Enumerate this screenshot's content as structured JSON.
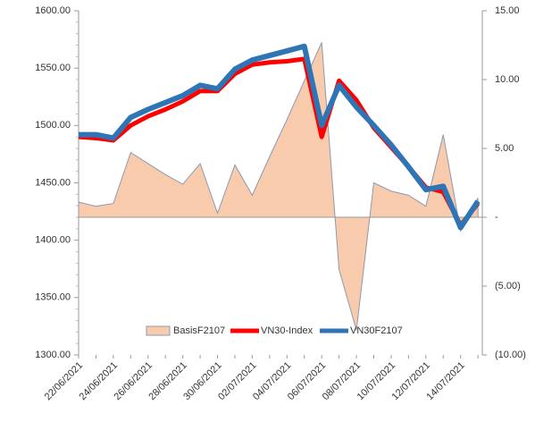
{
  "chart_data": {
    "type": "line",
    "categories": [
      "22/06/2021",
      null,
      "24/06/2021",
      null,
      "26/06/2021",
      null,
      "28/06/2021",
      null,
      "30/06/2021",
      null,
      "02/07/2021",
      null,
      "04/07/2021",
      null,
      "06/07/2021",
      null,
      "08/07/2021",
      null,
      "10/07/2021",
      null,
      "12/07/2021",
      null,
      "14/07/2021",
      null
    ],
    "series": [
      {
        "name": "BasisF2107",
        "type": "area",
        "axis": "y2",
        "color": "#f8cbad",
        "edge": "#8e98b0",
        "values": [
          1.1,
          0.8,
          1.0,
          4.7,
          3.9,
          3.1,
          2.4,
          3.9,
          0.3,
          3.8,
          1.6,
          4.4,
          7.1,
          9.9,
          12.7,
          -3.8,
          -8.2,
          2.5,
          1.9,
          1.6,
          0.8,
          6.0,
          -1.0,
          1.4
        ]
      },
      {
        "name": "VN30-Index",
        "type": "line",
        "color": "#ff0000",
        "values": [
          1490,
          1489,
          1487,
          1500,
          1508,
          1514,
          1521,
          1530,
          1530,
          1545,
          1553,
          1555,
          1556,
          1558,
          1490,
          1539,
          1522,
          1498,
          1481,
          1464,
          1446,
          1442,
          1413,
          1432
        ]
      },
      {
        "name": "VN30F2107",
        "type": "line",
        "color": "#2e75b6",
        "values": [
          1492,
          1492,
          1489,
          1507,
          1514,
          1520,
          1526,
          1535,
          1532,
          1549,
          1557,
          1561,
          1565,
          1569,
          1500,
          1535,
          1516,
          1500,
          1483,
          1464,
          1444,
          1447,
          1411,
          1434
        ]
      }
    ],
    "ylim": [
      1300,
      1600
    ],
    "yticks": [
      {
        "value": 1300,
        "label": "1300.00"
      },
      {
        "value": 1350,
        "label": "1350.00"
      },
      {
        "value": 1400,
        "label": "1400.00"
      },
      {
        "value": 1450,
        "label": "1450.00"
      },
      {
        "value": 1500,
        "label": "1500.00"
      },
      {
        "value": 1550,
        "label": "1550.00"
      },
      {
        "value": 1600,
        "label": "1600.00"
      }
    ],
    "y2lim": [
      -10,
      15
    ],
    "y2ticks": [
      {
        "value": -10,
        "label": "(10.00)"
      },
      {
        "value": -5,
        "label": "(5.00)"
      },
      {
        "value": 0,
        "label": "-"
      },
      {
        "value": 5,
        "label": "5.00"
      },
      {
        "value": 10,
        "label": "10.00"
      },
      {
        "value": 15,
        "label": "15.00"
      }
    ],
    "legend": "bottom"
  }
}
